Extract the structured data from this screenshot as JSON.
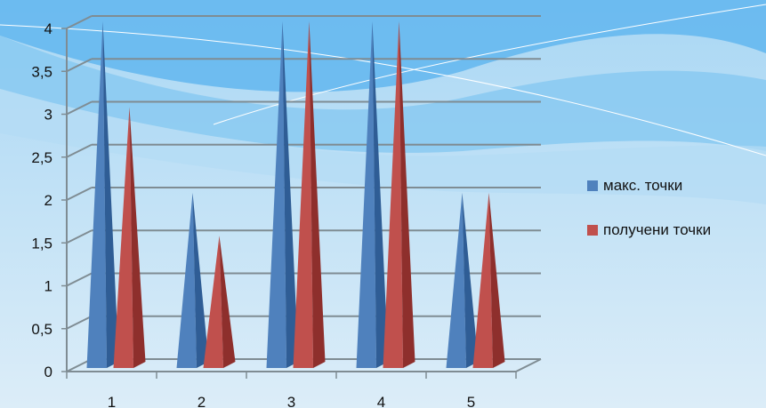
{
  "colors": {
    "series1": "#4f81bd",
    "series1_dark": "#2f5d95",
    "series2": "#c0504d",
    "series2_dark": "#8e2f2c",
    "grid": "#7f8c93"
  },
  "chart_data": {
    "type": "bar",
    "bar_shape": "pyramid-3d",
    "categories": [
      "1",
      "2",
      "3",
      "4",
      "5"
    ],
    "series": [
      {
        "name": "макс. точки",
        "values": [
          4,
          2,
          4,
          4,
          2
        ]
      },
      {
        "name": "получени точки",
        "values": [
          3,
          1.5,
          4,
          4,
          2
        ]
      }
    ],
    "y_ticks": [
      "0",
      "0,5",
      "1",
      "1,5",
      "2",
      "2,5",
      "3",
      "3,5",
      "4"
    ],
    "ylim": [
      0,
      4
    ],
    "grid": true,
    "legend_position": "right"
  }
}
